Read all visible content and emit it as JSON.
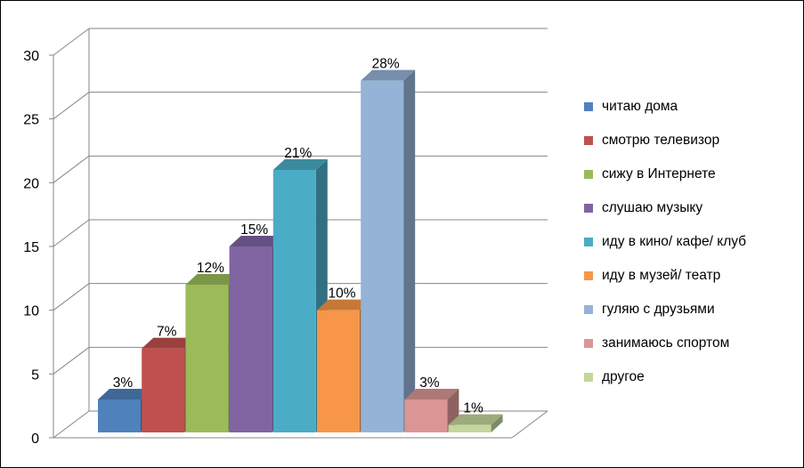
{
  "chart_data": {
    "type": "bar",
    "title": "",
    "xlabel": "",
    "ylabel": "",
    "ylim": [
      0,
      30
    ],
    "yticks": [
      0,
      5,
      10,
      15,
      20,
      25,
      30
    ],
    "grid": true,
    "legend_position": "right",
    "series": [
      {
        "name": " читаю дома",
        "value": 3,
        "label": "3%",
        "color": "#4F81BD"
      },
      {
        "name": "смотрю телевизор",
        "value": 7,
        "label": "7%",
        "color": "#C0504D"
      },
      {
        "name": "сижу в Интернете",
        "value": 12,
        "label": "12%",
        "color": "#9BBB59"
      },
      {
        "name": "слушаю музыку",
        "value": 15,
        "label": "15%",
        "color": "#8064A2"
      },
      {
        "name": "иду в кино/ кафе/ клуб",
        "value": 21,
        "label": "21%",
        "color": "#4BACC6"
      },
      {
        "name": "иду в музей/ театр",
        "value": 10,
        "label": "10%",
        "color": "#F79646"
      },
      {
        "name": "гуляю с друзьями",
        "value": 28,
        "label": "28%",
        "color": "#95B3D7"
      },
      {
        "name": "занимаюсь спортом",
        "value": 3,
        "label": "3%",
        "color": "#D99694"
      },
      {
        "name": "другое",
        "value": 1,
        "label": "1%",
        "color": "#C3D69B"
      }
    ]
  }
}
